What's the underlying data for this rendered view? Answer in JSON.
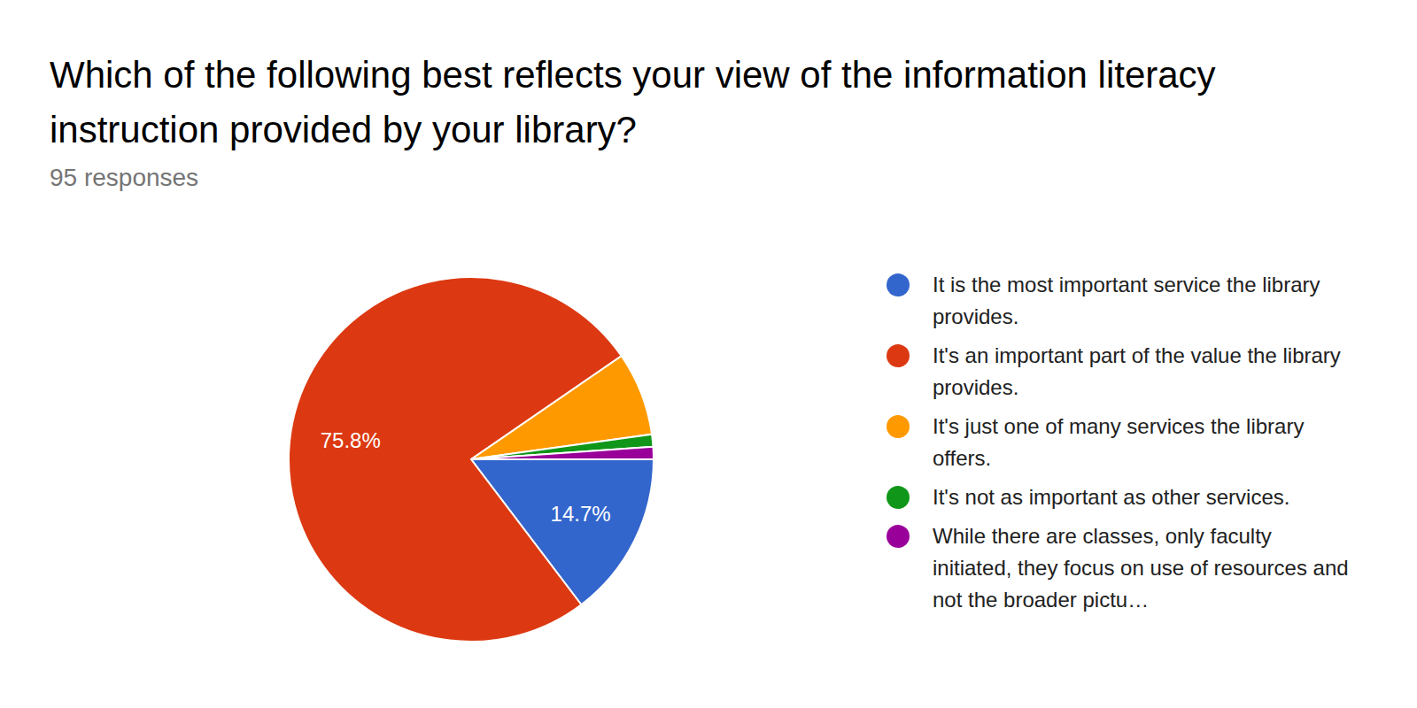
{
  "chart_data": {
    "type": "pie",
    "title": "Which of the following best reflects your view of the information literacy instruction provided by your library?",
    "subtitle": "95 responses",
    "categories": [
      "It is the most important service the library provides.",
      "It's an important part of the value the library provides.",
      "It's just one of many services the library offers.",
      "It's not as important as other services.",
      "While there are classes, only faculty initiated, they focus on use of resources and not the broader pictu…"
    ],
    "values": [
      14.7,
      75.8,
      7.4,
      1.1,
      1.1
    ],
    "colors": [
      "#3366cc",
      "#dc3912",
      "#ff9900",
      "#109618",
      "#990099"
    ],
    "data_labels": true,
    "value_labels": [
      "14.7%",
      "75.8%",
      null,
      null,
      null
    ],
    "legend": "right"
  }
}
